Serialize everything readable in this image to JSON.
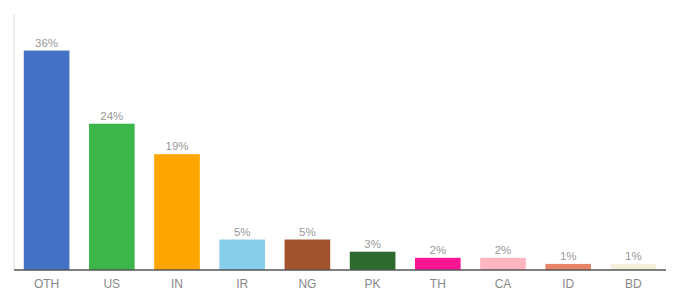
{
  "chart_data": {
    "type": "bar",
    "categories": [
      "OTH",
      "US",
      "IN",
      "IR",
      "NG",
      "PK",
      "TH",
      "CA",
      "ID",
      "BD"
    ],
    "values": [
      36,
      24,
      19,
      5,
      5,
      3,
      2,
      2,
      1,
      1
    ],
    "value_labels": [
      "36%",
      "24%",
      "19%",
      "5%",
      "5%",
      "3%",
      "2%",
      "2%",
      "1%",
      "1%"
    ],
    "colors": [
      "#4472C4",
      "#3CB54A",
      "#FFA500",
      "#87CEEB",
      "#A0522D",
      "#2D6A2D",
      "#FF1493",
      "#FFB6C1",
      "#E8846A",
      "#F5F0DC"
    ],
    "ylim": [
      0,
      42
    ],
    "data_labels": true,
    "tick_labels": "x",
    "grid": false
  }
}
